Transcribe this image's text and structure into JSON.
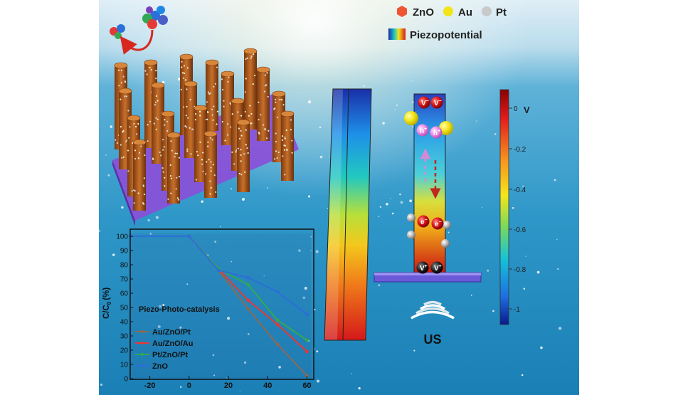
{
  "legend": {
    "zno": "ZnO",
    "au": "Au",
    "pt": "Pt",
    "piezo": "Piezopotential",
    "colors": {
      "zno": "#ee5533",
      "au": "#f2e416",
      "pt": "#c9c9c9"
    }
  },
  "colorbar": {
    "ticks": [
      "0",
      "-0.2",
      "-0.4",
      "-0.6",
      "-0.8",
      "-1"
    ],
    "unit": "V"
  },
  "rod": {
    "vacancy_top": [
      "V",
      "V"
    ],
    "vacancy_bottom": [
      "V",
      "V"
    ],
    "vacancy_sup_top": "−",
    "vacancy_sup_bottom": "+",
    "holes": [
      "h",
      "h"
    ],
    "hole_sup": "+",
    "electrons": [
      "e",
      "e"
    ],
    "electron_sup": "−",
    "us_label": "US"
  },
  "chart_data": {
    "type": "line",
    "x_ticks": [
      "-20",
      "0",
      "20",
      "40",
      "60"
    ],
    "y_ticks": [
      "100",
      "90",
      "80",
      "70",
      "60",
      "50",
      "40",
      "30",
      "20",
      "10",
      "0"
    ],
    "xlim": [
      -30,
      62
    ],
    "ylim": [
      0,
      105
    ],
    "ylabel_main": "C/C",
    "ylabel_sub": "0",
    "ylabel_unit": "(%)",
    "annotation": "Piezo-Photo-catalysis",
    "series": [
      {
        "name": "Au/ZnO/Pt",
        "color": "#8a6a55",
        "x": [
          -30,
          0,
          15,
          30,
          45,
          60
        ],
        "y": [
          100,
          100,
          76,
          49,
          24,
          2
        ]
      },
      {
        "name": "Au/ZnO/Au",
        "color": "#e53935",
        "x": [
          -30,
          0,
          15,
          30,
          45,
          60
        ],
        "y": [
          100,
          100,
          77,
          55,
          38,
          19
        ]
      },
      {
        "name": "Pt/ZnO/Pt",
        "color": "#33a852",
        "x": [
          -30,
          0,
          15,
          30,
          45,
          60
        ],
        "y": [
          100,
          100,
          77,
          66,
          41,
          27
        ]
      },
      {
        "name": "ZnO",
        "color": "#2c6fd8",
        "x": [
          -30,
          0,
          15,
          30,
          45,
          60
        ],
        "y": [
          100,
          100,
          76,
          71,
          61,
          45
        ]
      }
    ]
  }
}
